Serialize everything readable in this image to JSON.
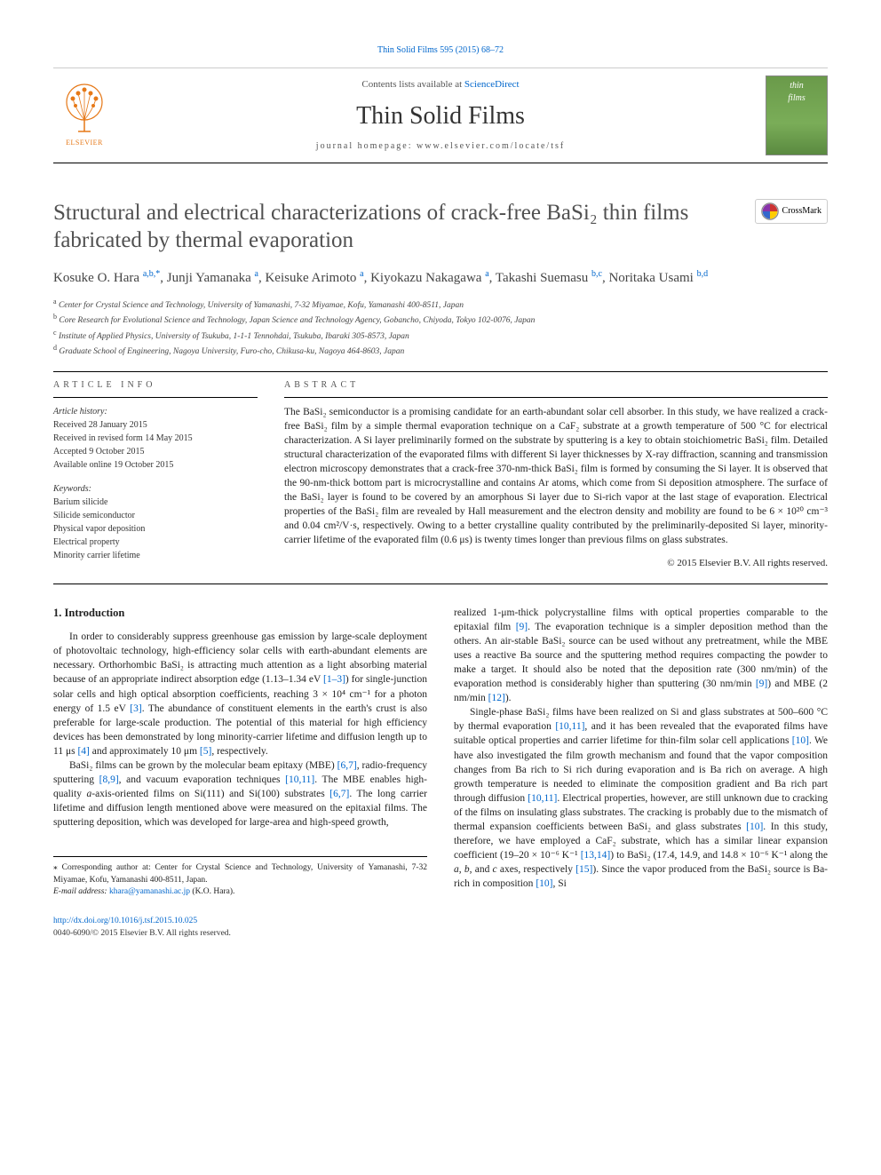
{
  "top_citation": "Thin Solid Films 595 (2015) 68–72",
  "masthead": {
    "publisher_name": "ELSEVIER",
    "publisher_color": "#e67817",
    "contents_prefix": "Contents lists available at ",
    "contents_link": "ScienceDirect",
    "journal_name": "Thin Solid Films",
    "homepage_prefix": "journal homepage: ",
    "homepage_url": "www.elsevier.com/locate/tsf",
    "cover_line1": "thin",
    "cover_line2": "films"
  },
  "crossmark_label": "CrossMark",
  "article": {
    "title": "Structural and electrical characterizations of crack-free BaSi₂ thin films fabricated by thermal evaporation",
    "authors_html": "Kosuke O. Hara <a class='sup'>a,b,*</a>, Junji Yamanaka <a class='sup'>a</a>, Keisuke Arimoto <a class='sup'>a</a>, Kiyokazu Nakagawa <a class='sup'>a</a>, Takashi Suemasu <a class='sup'>b,c</a>, Noritaka Usami <a class='sup'>b,d</a>",
    "affiliations": [
      {
        "mark": "a",
        "text": "Center for Crystal Science and Technology, University of Yamanashi, 7-32 Miyamae, Kofu, Yamanashi 400-8511, Japan"
      },
      {
        "mark": "b",
        "text": "Core Research for Evolutional Science and Technology, Japan Science and Technology Agency, Gobancho, Chiyoda, Tokyo 102-0076, Japan"
      },
      {
        "mark": "c",
        "text": "Institute of Applied Physics, University of Tsukuba, 1-1-1 Tennohdai, Tsukuba, Ibaraki 305-8573, Japan"
      },
      {
        "mark": "d",
        "text": "Graduate School of Engineering, Nagoya University, Furo-cho, Chikusa-ku, Nagoya 464-8603, Japan"
      }
    ]
  },
  "article_info": {
    "head": "article info",
    "history_label": "Article history:",
    "history": [
      "Received 28 January 2015",
      "Received in revised form 14 May 2015",
      "Accepted 9 October 2015",
      "Available online 19 October 2015"
    ],
    "keywords_label": "Keywords:",
    "keywords": [
      "Barium silicide",
      "Silicide semiconductor",
      "Physical vapor deposition",
      "Electrical property",
      "Minority carrier lifetime"
    ]
  },
  "abstract": {
    "head": "abstract",
    "text": "The BaSi₂ semiconductor is a promising candidate for an earth-abundant solar cell absorber. In this study, we have realized a crack-free BaSi₂ film by a simple thermal evaporation technique on a CaF₂ substrate at a growth temperature of 500 °C for electrical characterization. A Si layer preliminarily formed on the substrate by sputtering is a key to obtain stoichiometric BaSi₂ film. Detailed structural characterization of the evaporated films with different Si layer thicknesses by X-ray diffraction, scanning and transmission electron microscopy demonstrates that a crack-free 370-nm-thick BaSi₂ film is formed by consuming the Si layer. It is observed that the 90-nm-thick bottom part is microcrystalline and contains Ar atoms, which come from Si deposition atmosphere. The surface of the BaSi₂ layer is found to be covered by an amorphous Si layer due to Si-rich vapor at the last stage of evaporation. Electrical properties of the BaSi₂ film are revealed by Hall measurement and the electron density and mobility are found to be 6 × 10²⁰ cm⁻³ and 0.04 cm²/V·s, respectively. Owing to a better crystalline quality contributed by the preliminarily-deposited Si layer, minority-carrier lifetime of the evaporated film (0.6 μs) is twenty times longer than previous films on glass substrates.",
    "copyright": "© 2015 Elsevier B.V. All rights reserved."
  },
  "body": {
    "section_number": "1.",
    "section_title": "Introduction",
    "col1": [
      "In order to considerably suppress greenhouse gas emission by large-scale deployment of photovoltaic technology, high-efficiency solar cells with earth-abundant elements are necessary. Orthorhombic BaSi₂ is attracting much attention as a light absorbing material because of an appropriate indirect absorption edge (1.13–1.34 eV <a href='#'>[1–3]</a>) for single-junction solar cells and high optical absorption coefficients, reaching 3 × 10⁴ cm⁻¹ for a photon energy of 1.5 eV <a href='#'>[3]</a>. The abundance of constituent elements in the earth's crust is also preferable for large-scale production. The potential of this material for high efficiency devices has been demonstrated by long minority-carrier lifetime and diffusion length up to 11 μs <a href='#'>[4]</a> and approximately 10 μm <a href='#'>[5]</a>, respectively.",
      "BaSi₂ films can be grown by the molecular beam epitaxy (MBE) <a href='#'>[6,7]</a>, radio-frequency sputtering <a href='#'>[8,9]</a>, and vacuum evaporation techniques <a href='#'>[10,11]</a>. The MBE enables high-quality <i>a</i>-axis-oriented films on Si(111) and Si(100) substrates <a href='#'>[6,7]</a>. The long carrier lifetime and diffusion length mentioned above were measured on the epitaxial films. The sputtering deposition, which was developed for large-area and high-speed growth,"
    ],
    "col2": [
      "realized 1-μm-thick polycrystalline films with optical properties comparable to the epitaxial film <a href='#'>[9]</a>. The evaporation technique is a simpler deposition method than the others. An air-stable BaSi₂ source can be used without any pretreatment, while the MBE uses a reactive Ba source and the sputtering method requires compacting the powder to make a target. It should also be noted that the deposition rate (300 nm/min) of the evaporation method is considerably higher than sputtering (30 nm/min <a href='#'>[9]</a>) and MBE (2 nm/min <a href='#'>[12]</a>).",
      "Single-phase BaSi₂ films have been realized on Si and glass substrates at 500–600 °C by thermal evaporation <a href='#'>[10,11]</a>, and it has been revealed that the evaporated films have suitable optical properties and carrier lifetime for thin-film solar cell applications <a href='#'>[10]</a>. We have also investigated the film growth mechanism and found that the vapor composition changes from Ba rich to Si rich during evaporation and is Ba rich on average. A high growth temperature is needed to eliminate the composition gradient and Ba rich part through diffusion <a href='#'>[10,11]</a>. Electrical properties, however, are still unknown due to cracking of the films on insulating glass substrates. The cracking is probably due to the mismatch of thermal expansion coefficients between BaSi₂ and glass substrates <a href='#'>[10]</a>. In this study, therefore, we have employed a CaF₂ substrate, which has a similar linear expansion coefficient (19–20 × 10⁻⁶ K⁻¹ <a href='#'>[13,14]</a>) to BaSi₂ (17.4, 14.9, and 14.8 × 10⁻⁶ K⁻¹ along the <i>a</i>, <i>b</i>, and <i>c</i> axes, respectively <a href='#'>[15]</a>). Since the vapor produced from the BaSi₂ source is Ba-rich in composition <a href='#'>[10]</a>, Si"
    ]
  },
  "footnote": {
    "mark": "⁎",
    "text": "Corresponding author at: Center for Crystal Science and Technology, University of Yamanashi, 7-32 Miyamae, Kofu, Yamanashi 400-8511, Japan.",
    "email_label": "E-mail address:",
    "email": "khara@yamanashi.ac.jp",
    "email_name": "(K.O. Hara)."
  },
  "footer": {
    "doi": "http://dx.doi.org/10.1016/j.tsf.2015.10.025",
    "issn_line": "0040-6090/© 2015 Elsevier B.V. All rights reserved."
  },
  "colors": {
    "link": "#0066cc",
    "publisher": "#e67817",
    "text": "#222222",
    "rule": "#000000",
    "cover_bg": "#6a9a4a"
  }
}
